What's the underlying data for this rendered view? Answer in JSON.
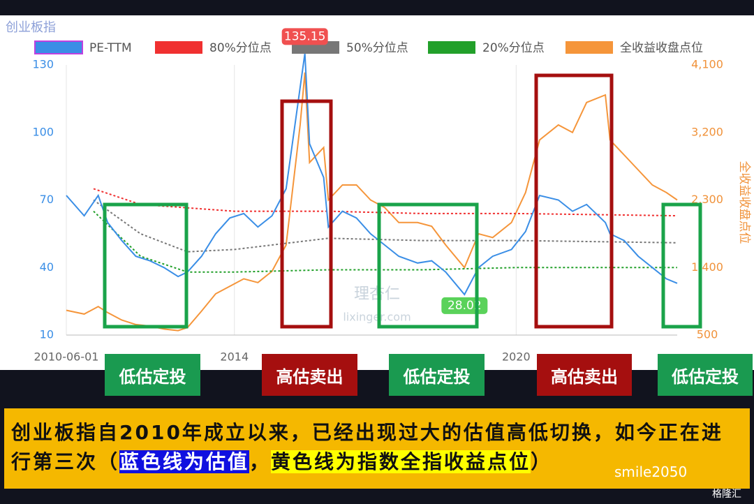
{
  "chart_data": {
    "type": "line",
    "title": "创业板指",
    "y2label": "全收益收盘点位",
    "grid": true,
    "xlim": [
      2010.42,
      2023.43
    ],
    "xticks": [
      {
        "value": 2010.42,
        "label": "2010-06-01"
      },
      2014,
      2020
    ],
    "ylim": [
      10,
      130
    ],
    "yticks": [
      10,
      40,
      70,
      100,
      130
    ],
    "y2lim": [
      500,
      4100
    ],
    "y2ticks": [
      500,
      {
        "value": 1400,
        "label": "1,400"
      },
      {
        "value": 2300,
        "label": "2,300"
      },
      {
        "value": 3200,
        "label": "3,200"
      },
      {
        "value": 4100,
        "label": "4,100"
      }
    ],
    "series": [
      {
        "name": "PE-TTM",
        "color": "#3a8ee6",
        "x": [
          2010.42,
          2010.8,
          2011.1,
          2011.3,
          2011.6,
          2011.9,
          2012.2,
          2012.5,
          2012.8,
          2013.0,
          2013.3,
          2013.6,
          2013.9,
          2014.2,
          2014.5,
          2014.8,
          2015.1,
          2015.4,
          2015.5,
          2015.6,
          2015.9,
          2016.0,
          2016.3,
          2016.6,
          2016.9,
          2017.2,
          2017.5,
          2017.9,
          2018.2,
          2018.5,
          2018.9,
          2019.2,
          2019.5,
          2019.9,
          2020.2,
          2020.5,
          2020.9,
          2021.2,
          2021.5,
          2021.9,
          2022.0,
          2022.3,
          2022.6,
          2022.9,
          2023.2,
          2023.43
        ],
        "values": [
          72,
          63,
          72,
          60,
          52,
          45,
          43,
          40,
          36,
          38,
          45,
          55,
          62,
          64,
          58,
          63,
          75,
          120,
          135.15,
          95,
          80,
          58,
          65,
          62,
          55,
          50,
          45,
          42,
          43,
          38,
          28.02,
          40,
          45,
          48,
          56,
          72,
          70,
          65,
          68,
          60,
          55,
          52,
          45,
          40,
          35,
          33
        ]
      },
      {
        "name": "80%分位点",
        "color": "#f03030",
        "dashed": true,
        "x": [
          2011.0,
          2012.0,
          2014.0,
          2016.0,
          2018.0,
          2020.0,
          2023.43
        ],
        "values": [
          75,
          68,
          65,
          65,
          64,
          64,
          63
        ]
      },
      {
        "name": "50%分位点",
        "color": "#777777",
        "dashed": true,
        "x": [
          2011.0,
          2012.0,
          2013.0,
          2014.0,
          2016.0,
          2018.0,
          2020.0,
          2023.43
        ],
        "values": [
          70,
          55,
          47,
          48,
          53,
          52,
          52,
          51
        ]
      },
      {
        "name": "20%分位点",
        "color": "#22a02a",
        "dashed": true,
        "x": [
          2011.0,
          2012.0,
          2013.0,
          2014.0,
          2016.0,
          2018.0,
          2020.0,
          2023.43
        ],
        "values": [
          65,
          45,
          38,
          38,
          39,
          39,
          40,
          40
        ]
      },
      {
        "name": "全收益收盘点位",
        "color": "#f5953a",
        "axis": "y2",
        "x": [
          2010.42,
          2010.8,
          2011.1,
          2011.3,
          2011.6,
          2011.9,
          2012.2,
          2012.5,
          2012.8,
          2013.0,
          2013.3,
          2013.6,
          2013.9,
          2014.2,
          2014.5,
          2014.8,
          2015.1,
          2015.4,
          2015.5,
          2015.6,
          2015.9,
          2016.0,
          2016.3,
          2016.6,
          2016.9,
          2017.2,
          2017.5,
          2017.9,
          2018.2,
          2018.5,
          2018.9,
          2019.2,
          2019.5,
          2019.9,
          2020.2,
          2020.5,
          2020.9,
          2021.2,
          2021.5,
          2021.9,
          2022.0,
          2022.3,
          2022.6,
          2022.9,
          2023.2,
          2023.43
        ],
        "values": [
          830,
          780,
          880,
          800,
          700,
          640,
          620,
          580,
          560,
          600,
          820,
          1050,
          1150,
          1250,
          1200,
          1350,
          1700,
          3300,
          4000,
          2800,
          3000,
          2300,
          2500,
          2500,
          2300,
          2200,
          2000,
          2000,
          1950,
          1700,
          1400,
          1850,
          1800,
          2000,
          2400,
          3100,
          3300,
          3200,
          3600,
          3700,
          3100,
          2900,
          2700,
          2500,
          2400,
          2300
        ]
      }
    ]
  },
  "watermark": [
    "理杏仁",
    "lixinger.com"
  ],
  "buttons": [
    "低估定投",
    "高估卖出",
    "低估定投",
    "高估卖出",
    "低估定投"
  ],
  "caption": {
    "text": "创业板指自2010年成立以来，已经出现过大的估值高低切换，如今正在进行第三次（",
    "blue": "蓝色线为估值",
    "comma": "，",
    "yellow": "黄色线为指数全指收益点位",
    "end": "）"
  },
  "footer": {
    "author": "smile2050",
    "brand": "格隆汇"
  }
}
